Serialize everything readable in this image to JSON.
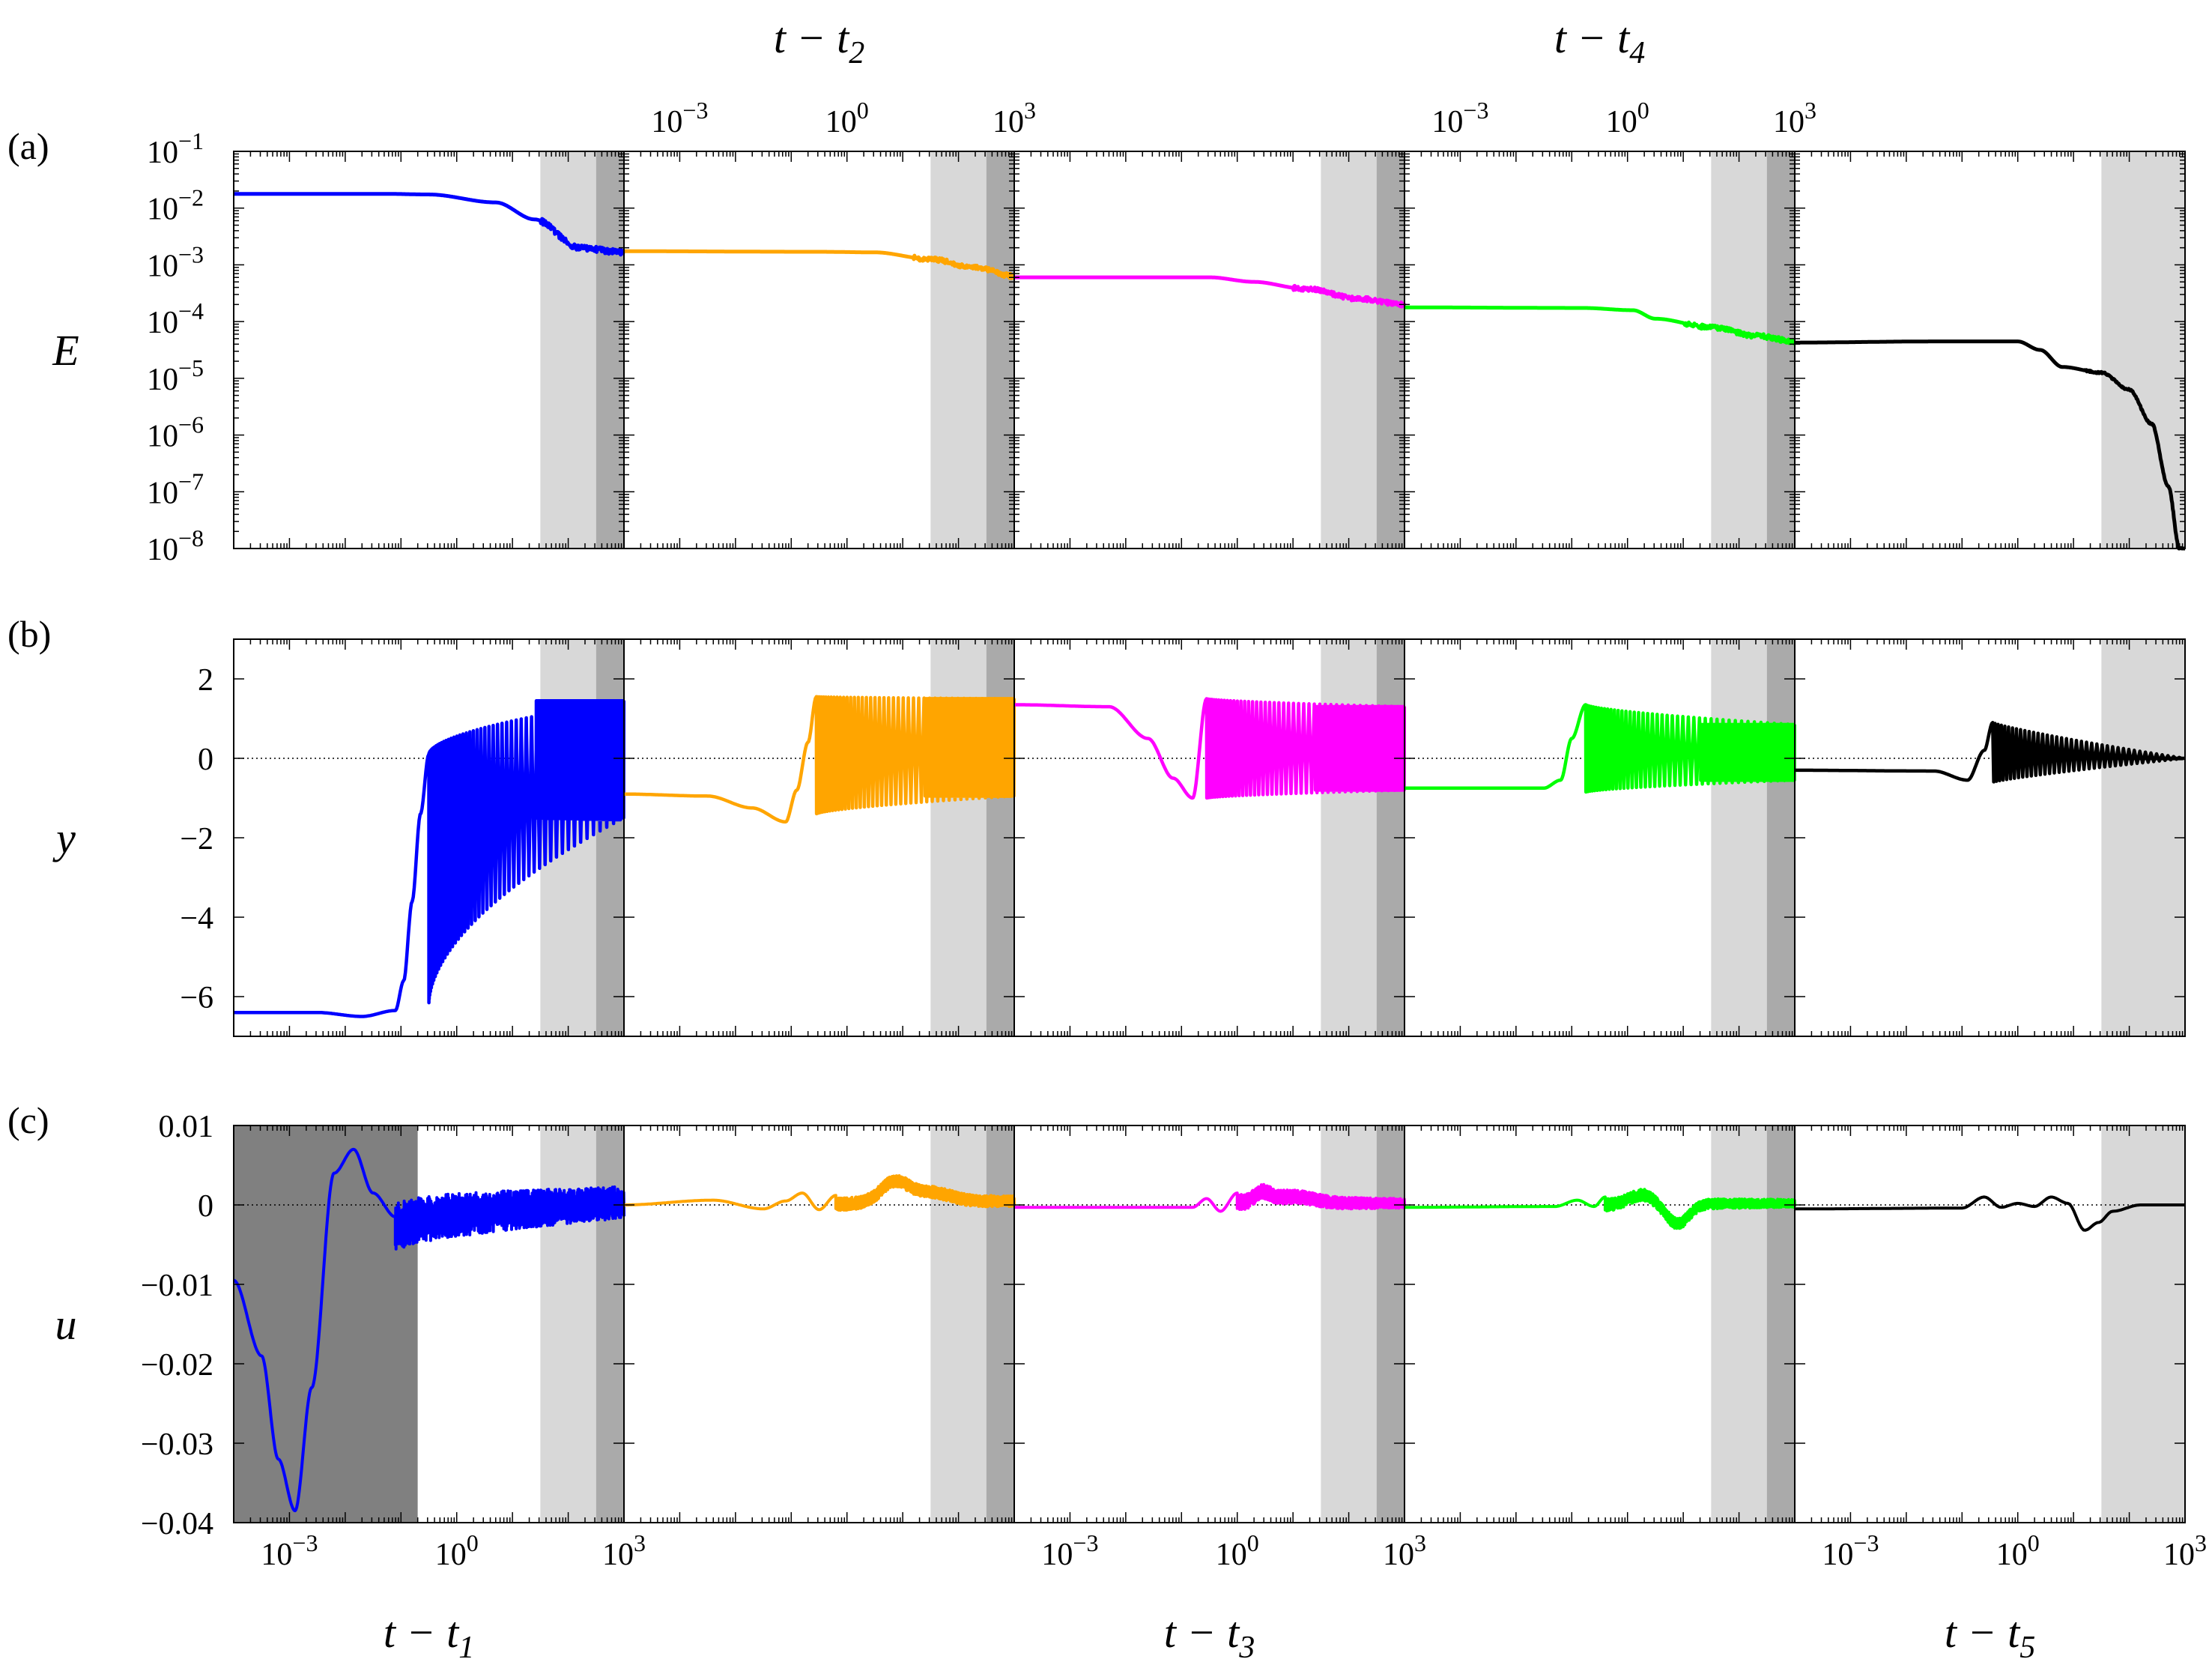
{
  "chart_data": {
    "type": "line",
    "description": "Five consecutive time windows (log time axes) shown across three stacked rows: (a) energy E, (b) y, (c) u.",
    "rows": [
      {
        "id": "a",
        "panel_label": "(a)",
        "ylabel": "E",
        "yscale": "log",
        "ylim": [
          1e-08,
          0.1
        ],
        "yticks": [
          {
            "label": "10",
            "exp": "−1",
            "v": -1
          },
          {
            "label": "10",
            "exp": "−2",
            "v": -2
          },
          {
            "label": "10",
            "exp": "−3",
            "v": -3
          },
          {
            "label": "10",
            "exp": "−4",
            "v": -4
          },
          {
            "label": "10",
            "exp": "−5",
            "v": -5
          },
          {
            "label": "10",
            "exp": "−6",
            "v": -6
          },
          {
            "label": "10",
            "exp": "−7",
            "v": -7
          },
          {
            "label": "10",
            "exp": "−8",
            "v": -8
          }
        ]
      },
      {
        "id": "b",
        "panel_label": "(b)",
        "ylabel": "y",
        "yscale": "linear",
        "ylim": [
          -7,
          3
        ],
        "yticks": [
          {
            "label": "2",
            "v": 2
          },
          {
            "label": "0",
            "v": 0
          },
          {
            "label": "−2",
            "v": -2
          },
          {
            "label": "−4",
            "v": -4
          },
          {
            "label": "−6",
            "v": -6
          }
        ]
      },
      {
        "id": "c",
        "panel_label": "(c)",
        "ylabel": "u",
        "yscale": "linear",
        "ylim": [
          -0.04,
          0.01
        ],
        "yticks": [
          {
            "label": "0.01",
            "v": 0.01
          },
          {
            "label": "0",
            "v": 0
          },
          {
            "label": "−0.01",
            "v": -0.01
          },
          {
            "label": "−0.02",
            "v": -0.02
          },
          {
            "label": "−0.03",
            "v": -0.03
          },
          {
            "label": "−0.04",
            "v": -0.04
          }
        ]
      }
    ],
    "xaxis": {
      "scale": "log",
      "xlim_exp": [
        -4,
        3
      ],
      "ticks": [
        {
          "label": "10",
          "exp": "−3",
          "v": -3
        },
        {
          "label": "10",
          "exp": "0",
          "v": 0
        },
        {
          "label": "10",
          "exp": "3",
          "v": 3
        }
      ]
    },
    "windows": [
      {
        "name": "window 1",
        "color": "#0000ff",
        "xlabel_main": "t − t",
        "xlabel_sub": "1",
        "xlabel_pos": "bottom",
        "shade": {
          "light": [
            1.5,
            2.5
          ],
          "dark": [
            2.5,
            3
          ]
        },
        "c_dark_shade": [
          -4,
          -0.7
        ],
        "E": [
          [
            -4,
            -1.75
          ],
          [
            -1.2,
            -1.75
          ],
          [
            -0.5,
            -1.76
          ],
          [
            0.7,
            -1.9
          ],
          [
            1.4,
            -2.2
          ],
          [
            2.2,
            -2.7
          ],
          [
            3,
            -2.78
          ]
        ],
        "E_noise": 0.05,
        "E_noise_from": 1.5,
        "y_line": [
          [
            -4,
            -6.4
          ],
          [
            -2.5,
            -6.4
          ],
          [
            -1.7,
            -6.5
          ],
          [
            -1.1,
            -6.35
          ],
          [
            -0.95,
            -5.6
          ],
          [
            -0.8,
            -3.6
          ],
          [
            -0.65,
            -1.4
          ],
          [
            -0.5,
            0.1
          ]
        ],
        "y_osc": {
          "x0": -0.5,
          "x1": 3,
          "cycles": 50,
          "max_start": 0.1,
          "max_end": 1.45,
          "min_start": -6.2,
          "min_end": -1.5,
          "k": 1.8
        },
        "u_line": [
          [
            -4,
            -0.0095
          ],
          [
            -3.5,
            -0.019
          ],
          [
            -3.2,
            -0.032
          ],
          [
            -2.9,
            -0.0385
          ],
          [
            -2.6,
            -0.023
          ],
          [
            -2.2,
            0.004
          ],
          [
            -1.85,
            0.007
          ],
          [
            -1.5,
            0.0015
          ],
          [
            -1.1,
            -0.0015
          ]
        ],
        "u_osc": {
          "x0": -1.1,
          "x1": 3,
          "cycles": 45,
          "center_start": -0.003,
          "center_end": 0.0003,
          "amp_start": 0.003,
          "amp_end": 0.002,
          "k": 1.2
        }
      },
      {
        "name": "window 2",
        "color": "#ffa500",
        "xlabel_main": "t − t",
        "xlabel_sub": "2",
        "xlabel_pos": "top",
        "shade": {
          "light": [
            1.5,
            2.5
          ],
          "dark": [
            2.5,
            3
          ]
        },
        "E": [
          [
            -4,
            -2.76
          ],
          [
            -0.5,
            -2.77
          ],
          [
            0.5,
            -2.78
          ],
          [
            1.5,
            -2.9
          ],
          [
            2.3,
            -3.05
          ],
          [
            3,
            -3.2
          ]
        ],
        "E_noise": 0.04,
        "E_noise_from": 1.2,
        "y_line": [
          [
            -4,
            -0.9
          ],
          [
            -2.5,
            -0.95
          ],
          [
            -1.7,
            -1.25
          ],
          [
            -1.1,
            -1.6
          ],
          [
            -0.9,
            -0.8
          ],
          [
            -0.7,
            0.4
          ],
          [
            -0.55,
            1.55
          ]
        ],
        "y_osc": {
          "x0": -0.55,
          "x1": 3,
          "cycles": 45,
          "max_start": 1.55,
          "max_end": 1.5,
          "min_start": -1.4,
          "min_end": -0.95,
          "k": 1.5
        },
        "u_line": [
          [
            -4,
            0
          ],
          [
            -2.4,
            0.0006
          ],
          [
            -1.5,
            -0.0005
          ],
          [
            -1.1,
            0.0005
          ],
          [
            -0.8,
            0.0015
          ],
          [
            -0.5,
            -0.0006
          ],
          [
            -0.2,
            0.0012
          ]
        ],
        "u_osc": {
          "x0": -0.2,
          "x1": 3,
          "cycles": 60,
          "center_start": 0,
          "center_end": 0.0005,
          "amp_start": 0.0008,
          "amp_end": 0.0007,
          "k": 1
        },
        "u_bumps": [
          {
            "x": 0.85,
            "w": 0.35,
            "a": 0.0025
          },
          {
            "x": 1.5,
            "w": 0.5,
            "a": 0.0012
          }
        ]
      },
      {
        "name": "window 3",
        "color": "#ff00ff",
        "xlabel_main": "t − t",
        "xlabel_sub": "3",
        "xlabel_pos": "bottom",
        "shade": {
          "light": [
            1.5,
            2.5
          ],
          "dark": [
            2.5,
            3
          ]
        },
        "E": [
          [
            -4,
            -3.22
          ],
          [
            -0.5,
            -3.22
          ],
          [
            0.3,
            -3.3
          ],
          [
            1.2,
            -3.42
          ],
          [
            2.2,
            -3.6
          ],
          [
            3,
            -3.7
          ]
        ],
        "E_noise": 0.04,
        "E_noise_from": 1.0,
        "y_line": [
          [
            -4,
            1.35
          ],
          [
            -2.3,
            1.3
          ],
          [
            -1.6,
            0.5
          ],
          [
            -1.15,
            -0.5
          ],
          [
            -0.8,
            -1.0
          ],
          [
            -0.55,
            1.5
          ]
        ],
        "y_osc": {
          "x0": -0.55,
          "x1": 3,
          "cycles": 45,
          "max_start": 1.5,
          "max_end": 1.3,
          "min_start": -1.0,
          "min_end": -0.8,
          "k": 1.5
        },
        "u_line": [
          [
            -4,
            -0.0003
          ],
          [
            -0.8,
            -0.0003
          ],
          [
            -0.55,
            0.0008
          ],
          [
            -0.3,
            -0.0008
          ],
          [
            0.0,
            0.0015
          ]
        ],
        "u_osc": {
          "x0": 0.0,
          "x1": 3,
          "cycles": 60,
          "center_start": 0.0003,
          "center_end": 0.0002,
          "amp_start": 0.001,
          "amp_end": 0.0006,
          "k": 1
        },
        "u_bumps": [
          {
            "x": 0.45,
            "w": 0.2,
            "a": 0.0012
          },
          {
            "x": 1.0,
            "w": 0.5,
            "a": 0.0008
          }
        ]
      },
      {
        "name": "window 4",
        "color": "#00ff00",
        "xlabel_main": "t − t",
        "xlabel_sub": "4",
        "xlabel_pos": "top",
        "shade": {
          "light": [
            1.5,
            2.5
          ],
          "dark": [
            2.5,
            3
          ]
        },
        "E": [
          [
            -4,
            -3.75
          ],
          [
            -0.8,
            -3.76
          ],
          [
            0.1,
            -3.8
          ],
          [
            0.5,
            -3.95
          ],
          [
            1.5,
            -4.1
          ],
          [
            2.3,
            -4.25
          ],
          [
            3,
            -4.35
          ]
        ],
        "E_noise": 0.04,
        "E_noise_from": 1.0,
        "y_line": [
          [
            -4,
            -0.75
          ],
          [
            -1.5,
            -0.75
          ],
          [
            -1.2,
            -0.55
          ],
          [
            -1.0,
            0.5
          ],
          [
            -0.75,
            1.35
          ]
        ],
        "y_osc": {
          "x0": -0.75,
          "x1": 3,
          "cycles": 45,
          "max_start": 1.35,
          "max_end": 0.85,
          "min_start": -0.85,
          "min_end": -0.55,
          "k": 1.5
        },
        "u_line": [
          [
            -4,
            -0.0003
          ],
          [
            -1.3,
            -0.0002
          ],
          [
            -0.9,
            0.0006
          ],
          [
            -0.6,
            -0.0002
          ],
          [
            -0.4,
            0.001
          ]
        ],
        "u_osc": {
          "x0": -0.4,
          "x1": 3,
          "cycles": 60,
          "center_start": 0,
          "center_end": 0.0002,
          "amp_start": 0.0008,
          "amp_end": 0.0005,
          "k": 1
        },
        "u_bumps": [
          {
            "x": 0.25,
            "w": 0.3,
            "a": 0.0012
          },
          {
            "x": 0.9,
            "w": 0.28,
            "a": -0.0025
          }
        ]
      },
      {
        "name": "window 5",
        "color": "#000000",
        "xlabel_main": "t − t",
        "xlabel_sub": "5",
        "xlabel_pos": "bottom",
        "shade": {
          "light": [
            1.5,
            3
          ],
          "dark": null
        },
        "E": [
          [
            -4,
            -4.37
          ],
          [
            -1.5,
            -4.35
          ],
          [
            0.0,
            -4.35
          ],
          [
            0.4,
            -4.5
          ],
          [
            0.8,
            -4.8
          ],
          [
            1.5,
            -4.9
          ],
          [
            2.0,
            -5.2
          ],
          [
            2.4,
            -5.8
          ],
          [
            2.7,
            -6.9
          ],
          [
            2.9,
            -8.0
          ]
        ],
        "E_noise": 0.015,
        "E_noise_from": 1.2,
        "y_line": [
          [
            -4,
            -0.3
          ],
          [
            -1.5,
            -0.32
          ],
          [
            -0.9,
            -0.55
          ],
          [
            -0.6,
            0.2
          ],
          [
            -0.45,
            0.9
          ]
        ],
        "y_osc": {
          "x0": -0.45,
          "x1": 3,
          "cycles": 40,
          "max_start": 0.9,
          "max_end": 0.0,
          "min_start": -0.6,
          "min_end": 0.0,
          "k": 1.2
        },
        "u_line": [
          [
            -4,
            -0.0005
          ],
          [
            -1.0,
            -0.0004
          ],
          [
            -0.6,
            0.001
          ],
          [
            -0.3,
            -0.0003
          ],
          [
            0,
            0.0002
          ],
          [
            0.3,
            -0.0002
          ],
          [
            0.6,
            0.001
          ],
          [
            0.9,
            0.0002
          ],
          [
            1.2,
            -0.0032
          ],
          [
            1.45,
            -0.0022
          ],
          [
            1.7,
            -0.0008
          ],
          [
            2.2,
            0
          ],
          [
            3,
            0
          ]
        ]
      }
    ]
  }
}
